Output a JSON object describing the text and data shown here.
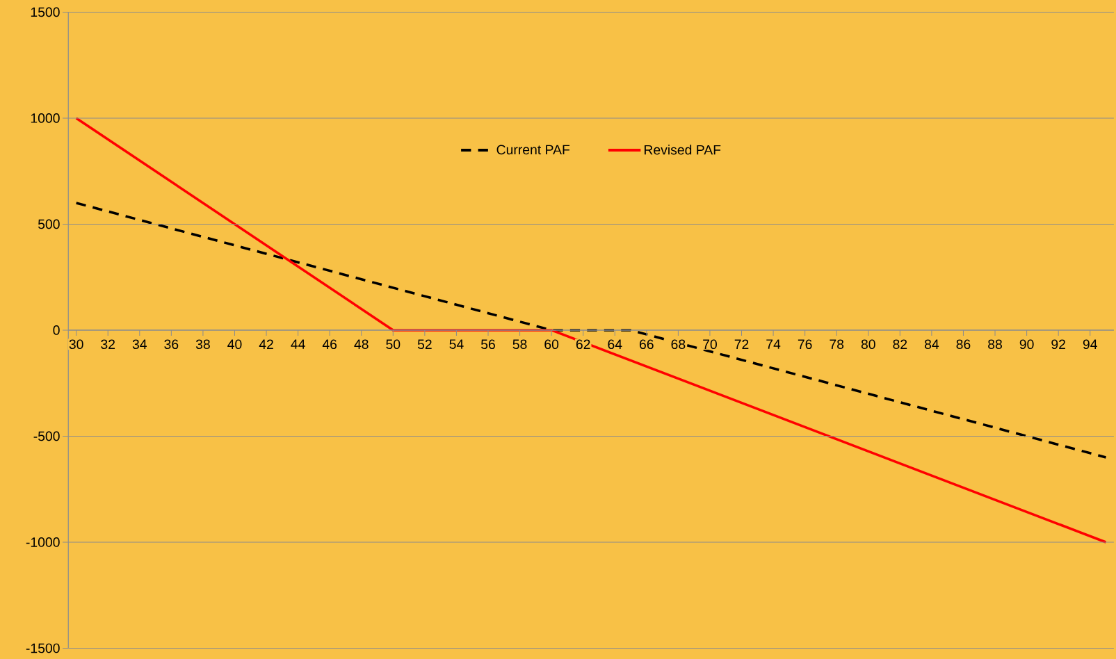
{
  "chart_data": {
    "type": "line",
    "xlim": [
      29.5,
      95.5
    ],
    "xticks": [
      30,
      32,
      34,
      36,
      38,
      40,
      42,
      44,
      46,
      48,
      50,
      52,
      54,
      56,
      58,
      60,
      62,
      64,
      66,
      68,
      70,
      72,
      74,
      76,
      78,
      80,
      82,
      84,
      86,
      88,
      90,
      92,
      94
    ],
    "ylim": [
      -1500,
      1500
    ],
    "yticks": [
      -1500,
      -1000,
      -500,
      0,
      500,
      1000,
      1500
    ],
    "grid": "y",
    "legend": "top",
    "series": [
      {
        "name": "Current PAF",
        "color": "#000000",
        "line_style": "dashed",
        "x": [
          30,
          60,
          65,
          95
        ],
        "values": [
          600,
          0,
          0,
          -600
        ]
      },
      {
        "name": "Revised PAF",
        "color": "#ff0000",
        "line_style": "solid",
        "x": [
          30,
          50,
          60,
          95
        ],
        "values": [
          1000,
          0,
          0,
          -1000
        ]
      }
    ]
  }
}
